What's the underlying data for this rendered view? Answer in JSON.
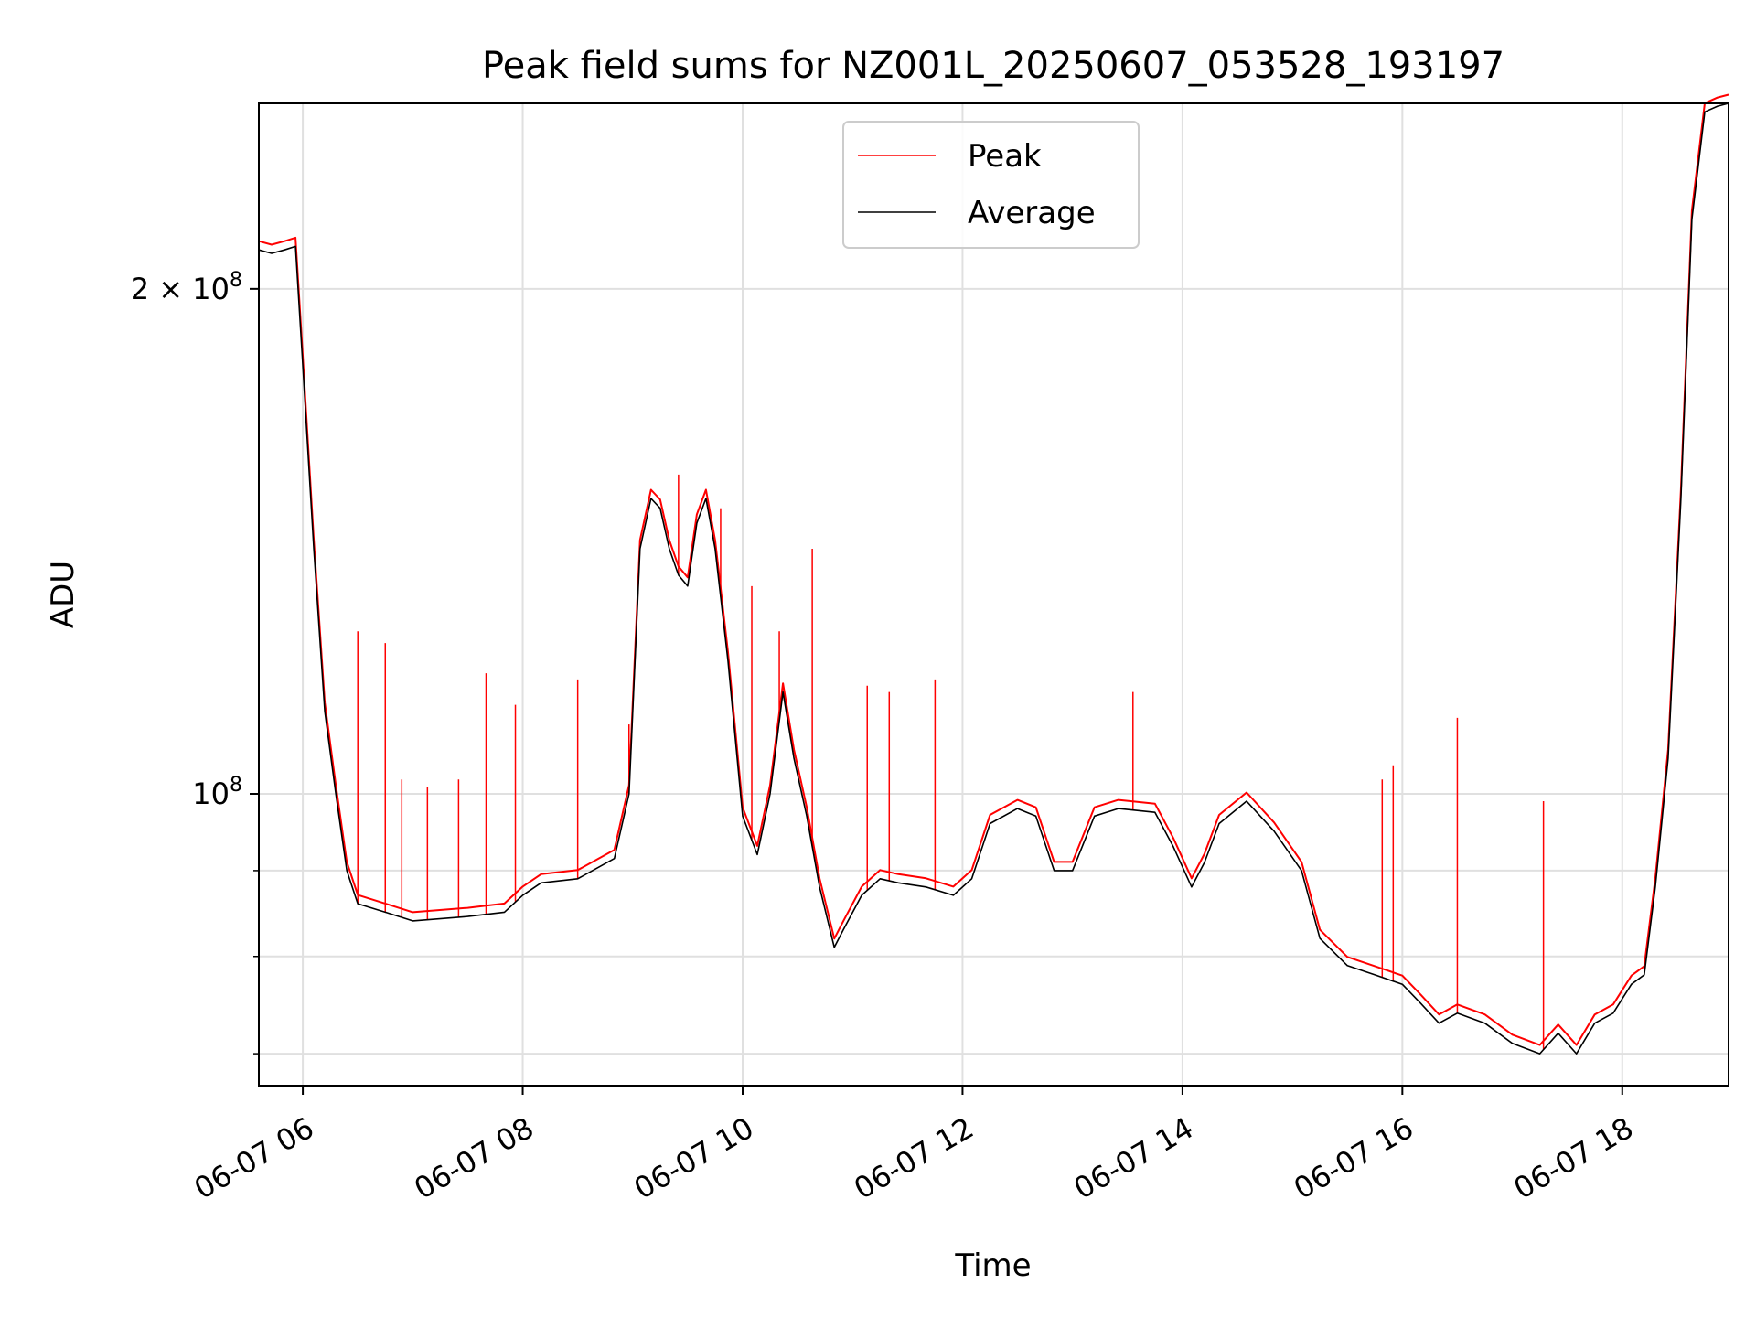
{
  "chart_data": {
    "type": "line",
    "title": "Peak field sums for NZ001L_20250607_053528_193197",
    "xlabel": "Time",
    "ylabel": "ADU",
    "yscale": "log",
    "xlim": [
      "2025-06-07T05:36",
      "2025-06-07T18:58"
    ],
    "ylim": [
      67000000,
      258000000
    ],
    "grid": true,
    "legend": {
      "placement": "upper-center",
      "entries": [
        "Peak",
        "Average"
      ]
    },
    "x_ticks": [
      "06-07 06",
      "06-07 08",
      "06-07 10",
      "06-07 12",
      "06-07 14",
      "06-07 16",
      "06-07 18"
    ],
    "y_tick_labels": [
      {
        "value": 200000000,
        "mantissa": "2",
        "base": "10",
        "exponent": "8"
      },
      {
        "value": 100000000,
        "mantissa": "",
        "base": "10",
        "exponent": "8"
      }
    ],
    "y_minor_ticks": [
      70000000,
      80000000,
      90000000
    ],
    "series": [
      {
        "name": "Average",
        "color": "#000000",
        "x": [
          "2025-06-07T05:36",
          "2025-06-07T05:43",
          "2025-06-07T05:50",
          "2025-06-07T05:56",
          "2025-06-07T06:00",
          "2025-06-07T06:06",
          "2025-06-07T06:12",
          "2025-06-07T06:18",
          "2025-06-07T06:24",
          "2025-06-07T06:30",
          "2025-06-07T06:45",
          "2025-06-07T07:00",
          "2025-06-07T07:30",
          "2025-06-07T07:50",
          "2025-06-07T08:00",
          "2025-06-07T08:10",
          "2025-06-07T08:30",
          "2025-06-07T08:50",
          "2025-06-07T08:58",
          "2025-06-07T09:04",
          "2025-06-07T09:10",
          "2025-06-07T09:15",
          "2025-06-07T09:20",
          "2025-06-07T09:25",
          "2025-06-07T09:30",
          "2025-06-07T09:35",
          "2025-06-07T09:40",
          "2025-06-07T09:45",
          "2025-06-07T09:52",
          "2025-06-07T10:00",
          "2025-06-07T10:08",
          "2025-06-07T10:15",
          "2025-06-07T10:22",
          "2025-06-07T10:28",
          "2025-06-07T10:35",
          "2025-06-07T10:42",
          "2025-06-07T10:50",
          "2025-06-07T10:55",
          "2025-06-07T11:05",
          "2025-06-07T11:15",
          "2025-06-07T11:25",
          "2025-06-07T11:40",
          "2025-06-07T11:55",
          "2025-06-07T12:05",
          "2025-06-07T12:15",
          "2025-06-07T12:30",
          "2025-06-07T12:40",
          "2025-06-07T12:50",
          "2025-06-07T13:00",
          "2025-06-07T13:12",
          "2025-06-07T13:25",
          "2025-06-07T13:45",
          "2025-06-07T13:55",
          "2025-06-07T14:05",
          "2025-06-07T14:12",
          "2025-06-07T14:20",
          "2025-06-07T14:35",
          "2025-06-07T14:50",
          "2025-06-07T15:05",
          "2025-06-07T15:15",
          "2025-06-07T15:30",
          "2025-06-07T15:45",
          "2025-06-07T16:00",
          "2025-06-07T16:10",
          "2025-06-07T16:20",
          "2025-06-07T16:30",
          "2025-06-07T16:45",
          "2025-06-07T17:00",
          "2025-06-07T17:15",
          "2025-06-07T17:25",
          "2025-06-07T17:35",
          "2025-06-07T17:45",
          "2025-06-07T17:55",
          "2025-06-07T18:05",
          "2025-06-07T18:12",
          "2025-06-07T18:18",
          "2025-06-07T18:25",
          "2025-06-07T18:32",
          "2025-06-07T18:38",
          "2025-06-07T18:45",
          "2025-06-07T18:52",
          "2025-06-07T18:58"
        ],
        "y": [
          211000000,
          210000000,
          211000000,
          212000000,
          180000000,
          140000000,
          112000000,
          100000000,
          90000000,
          86000000,
          85000000,
          84000000,
          84500000,
          85000000,
          87000000,
          88500000,
          89000000,
          91500000,
          100000000,
          140000000,
          150000000,
          148000000,
          140000000,
          135000000,
          133000000,
          145000000,
          150000000,
          140000000,
          120000000,
          97000000,
          92000000,
          100000000,
          115000000,
          105000000,
          97000000,
          88000000,
          81000000,
          83000000,
          87000000,
          89000000,
          88500000,
          88000000,
          87000000,
          89000000,
          96000000,
          98000000,
          97000000,
          90000000,
          90000000,
          97000000,
          98000000,
          97500000,
          93000000,
          88000000,
          91000000,
          96000000,
          99000000,
          95000000,
          90000000,
          82000000,
          79000000,
          78000000,
          77000000,
          75000000,
          73000000,
          74000000,
          73000000,
          71000000,
          70000000,
          72000000,
          70000000,
          73000000,
          74000000,
          77000000,
          78000000,
          88000000,
          105000000,
          150000000,
          220000000,
          255000000,
          257000000,
          258000000
        ]
      },
      {
        "name": "Peak",
        "color": "#ff0000",
        "spikes": [
          {
            "x": "2025-06-07T06:30",
            "y": 125000000
          },
          {
            "x": "2025-06-07T06:45",
            "y": 123000000
          },
          {
            "x": "2025-06-07T06:54",
            "y": 102000000
          },
          {
            "x": "2025-06-07T07:08",
            "y": 101000000
          },
          {
            "x": "2025-06-07T07:25",
            "y": 102000000
          },
          {
            "x": "2025-06-07T07:40",
            "y": 118000000
          },
          {
            "x": "2025-06-07T07:56",
            "y": 113000000
          },
          {
            "x": "2025-06-07T08:30",
            "y": 117000000
          },
          {
            "x": "2025-06-07T08:58",
            "y": 110000000
          },
          {
            "x": "2025-06-07T09:25",
            "y": 155000000
          },
          {
            "x": "2025-06-07T09:48",
            "y": 148000000
          },
          {
            "x": "2025-06-07T10:05",
            "y": 133000000
          },
          {
            "x": "2025-06-07T10:20",
            "y": 125000000
          },
          {
            "x": "2025-06-07T10:38",
            "y": 140000000
          },
          {
            "x": "2025-06-07T11:08",
            "y": 116000000
          },
          {
            "x": "2025-06-07T11:20",
            "y": 115000000
          },
          {
            "x": "2025-06-07T11:45",
            "y": 117000000
          },
          {
            "x": "2025-06-07T13:33",
            "y": 115000000
          },
          {
            "x": "2025-06-07T15:49",
            "y": 102000000
          },
          {
            "x": "2025-06-07T15:55",
            "y": 104000000
          },
          {
            "x": "2025-06-07T16:30",
            "y": 111000000
          },
          {
            "x": "2025-06-07T17:17",
            "y": 99000000
          }
        ]
      }
    ]
  }
}
